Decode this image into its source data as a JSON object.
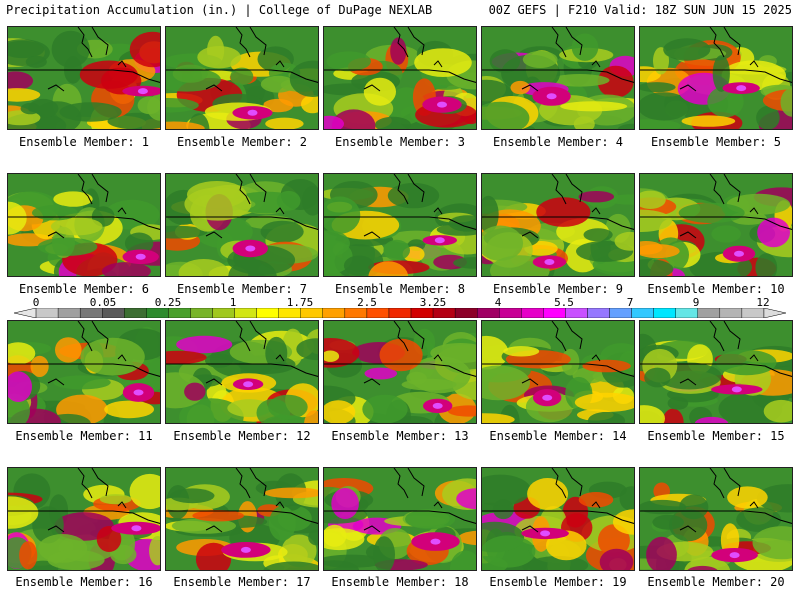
{
  "header": {
    "left": "Precipitation Accumulation (in.) | College of DuPage NEXLAB",
    "right": "00Z GEFS | F210 Valid: 18Z SUN JUN 15 2025"
  },
  "colorbar": {
    "tick_labels": [
      "0",
      "0.05",
      "0.25",
      "1",
      "1.75",
      "2.5",
      "3.25",
      "4",
      "5.5",
      "7",
      "9",
      "12"
    ],
    "colors": [
      "#e6e6e6",
      "#c8c8c8",
      "#a0a0a0",
      "#787878",
      "#5a5a5a",
      "#3c6e32",
      "#2e8b2e",
      "#4aa02c",
      "#78b428",
      "#a0c81e",
      "#d2e614",
      "#ffff00",
      "#ffe600",
      "#ffc800",
      "#ffa000",
      "#ff7800",
      "#ff5000",
      "#f02800",
      "#d20000",
      "#b40014",
      "#8c0028",
      "#a00064",
      "#c80096",
      "#e600c8",
      "#ff00ff",
      "#c850ff",
      "#9678ff",
      "#64a0ff",
      "#32c8ff",
      "#00e6ff",
      "#64e6e6",
      "#a0a0a0",
      "#b4b4b4",
      "#c8c8c8",
      "#dcdcdc"
    ]
  },
  "members": [
    {
      "label": "Ensemble Member: 1"
    },
    {
      "label": "Ensemble Member: 2"
    },
    {
      "label": "Ensemble Member: 3"
    },
    {
      "label": "Ensemble Member: 4"
    },
    {
      "label": "Ensemble Member: 5"
    },
    {
      "label": "Ensemble Member: 6"
    },
    {
      "label": "Ensemble Member: 7"
    },
    {
      "label": "Ensemble Member: 8"
    },
    {
      "label": "Ensemble Member: 9"
    },
    {
      "label": "Ensemble Member: 10"
    },
    {
      "label": "Ensemble Member: 11"
    },
    {
      "label": "Ensemble Member: 12"
    },
    {
      "label": "Ensemble Member: 13"
    },
    {
      "label": "Ensemble Member: 14"
    },
    {
      "label": "Ensemble Member: 15"
    },
    {
      "label": "Ensemble Member: 16"
    },
    {
      "label": "Ensemble Member: 17"
    },
    {
      "label": "Ensemble Member: 18"
    },
    {
      "label": "Ensemble Member: 19"
    },
    {
      "label": "Ensemble Member: 20"
    }
  ]
}
